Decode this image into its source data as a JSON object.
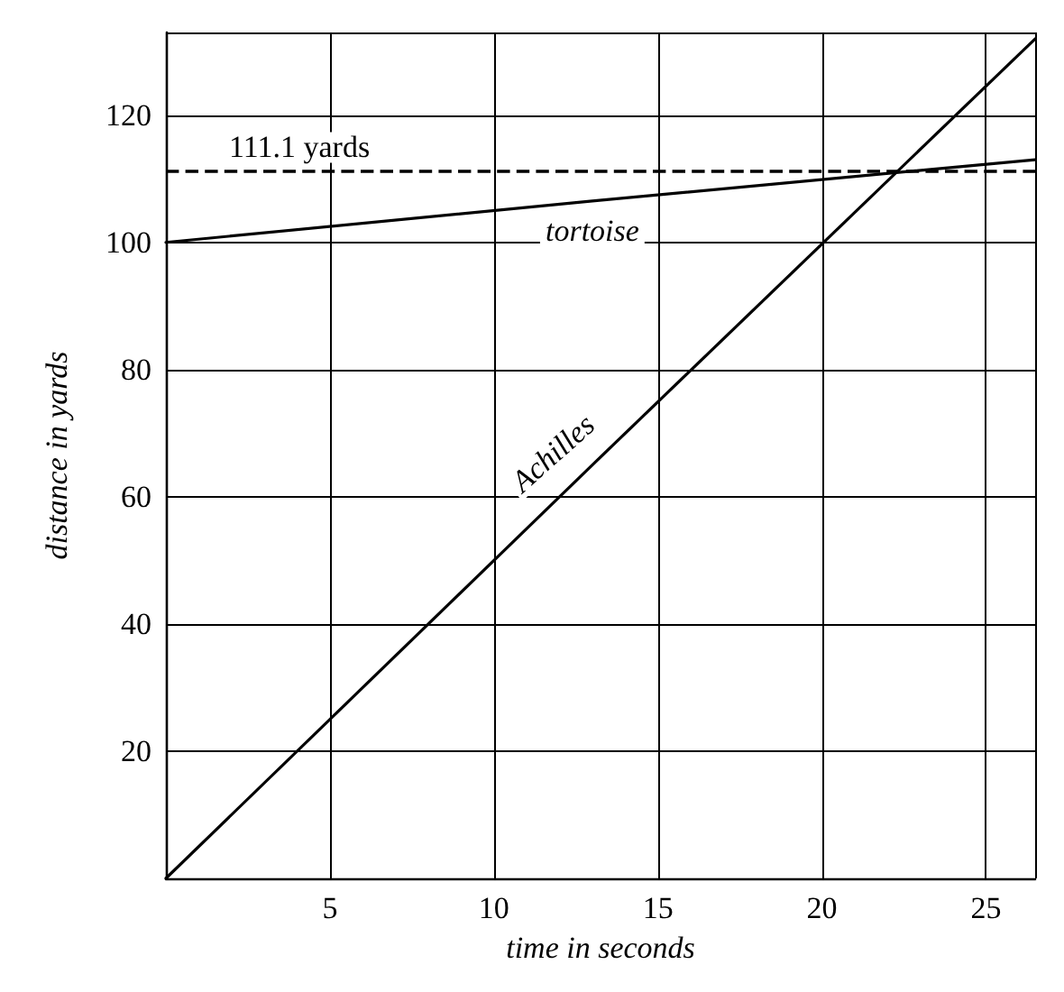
{
  "chart_data": {
    "type": "line",
    "xlabel": "time in seconds",
    "ylabel": "distance in yards",
    "series": [
      {
        "name": "tortoise",
        "color": "#000000",
        "x": [
          0,
          13,
          26.5
        ],
        "values": [
          100,
          106.5,
          113
        ]
      },
      {
        "name": "Achilles",
        "color": "#000000",
        "x": [
          0,
          13,
          26.5
        ],
        "values": [
          0,
          65,
          132
        ]
      }
    ],
    "xlim": [
      0,
      26.5
    ],
    "ylim": [
      0,
      133
    ],
    "xticks": [
      5,
      10,
      15,
      20,
      25
    ],
    "yticks": [
      20,
      40,
      60,
      80,
      100,
      120
    ],
    "ref_lines": [
      {
        "axis": "y",
        "value": 111.1,
        "label": "111.1 yards",
        "color": "#000000",
        "line_style": "dashed"
      }
    ],
    "grid": true,
    "legend": false,
    "marker": "none",
    "line_style": "solid"
  }
}
